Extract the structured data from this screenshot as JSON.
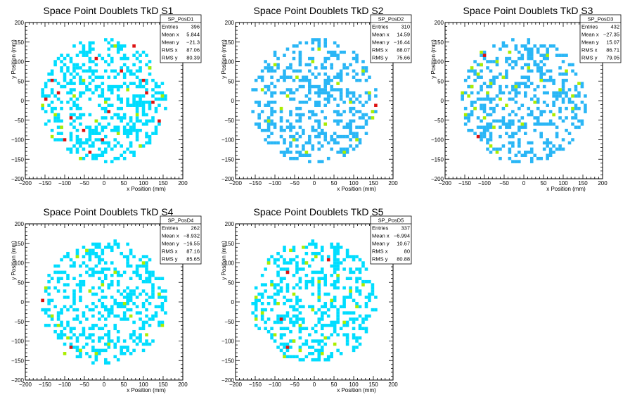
{
  "chart_data": [
    {
      "type": "heatmap",
      "title": "Space Point Doublets TkD S1",
      "xlabel": "x Position (mm)",
      "ylabel": "y Position (mm)",
      "xlim": [
        -200,
        200
      ],
      "ylim": [
        -200,
        200
      ],
      "xticks": [
        -200,
        -150,
        -100,
        -50,
        0,
        50,
        100,
        150,
        200
      ],
      "yticks": [
        -200,
        -150,
        -100,
        -50,
        0,
        50,
        100,
        150,
        200
      ],
      "stats": {
        "name": "SP_PosD1",
        "rows": [
          [
            "Entries",
            "396"
          ],
          [
            "Mean x",
            "5.844"
          ],
          [
            "Mean y",
            "−21.3"
          ],
          [
            "RMS x",
            "87.06"
          ],
          [
            "RMS y",
            "80.39"
          ]
        ]
      },
      "distribution": {
        "radius": 160,
        "bin": 8
      },
      "cells": [
        [
          -136,
          48,
          4
        ],
        [
          -120,
          16,
          4
        ],
        [
          -88,
          -48,
          4
        ],
        [
          -56,
          -80,
          4
        ],
        [
          -40,
          -136,
          4
        ],
        [
          -8,
          -104,
          4
        ],
        [
          40,
          72,
          4
        ],
        [
          96,
          48,
          4
        ],
        [
          120,
          -8,
          4
        ],
        [
          136,
          -56,
          4
        ],
        [
          -152,
          0,
          4
        ],
        [
          -24,
          104,
          4
        ],
        [
          8,
          -32,
          4
        ],
        [
          72,
          136,
          4
        ],
        [
          -104,
          -104,
          4
        ],
        [
          104,
          16,
          4
        ],
        [
          -160,
          -16,
          3
        ],
        [
          -128,
          -40,
          3
        ],
        [
          -112,
          -72,
          3
        ],
        [
          -80,
          8,
          3
        ],
        [
          -56,
          48,
          3
        ],
        [
          -24,
          -56,
          3
        ],
        [
          0,
          -8,
          3
        ],
        [
          32,
          -88,
          3
        ],
        [
          56,
          24,
          3
        ],
        [
          80,
          -40,
          3
        ],
        [
          112,
          80,
          3
        ],
        [
          144,
          8,
          3
        ],
        [
          -64,
          -152,
          3
        ],
        [
          24,
          136,
          3
        ],
        [
          -136,
          -96,
          3
        ],
        [
          88,
          -120,
          3
        ]
      ]
    },
    {
      "type": "heatmap",
      "title": "Space Point Doublets TkD S2",
      "xlabel": "x Position (mm)",
      "ylabel": "y Position (mm)",
      "xlim": [
        -200,
        200
      ],
      "ylim": [
        -200,
        200
      ],
      "xticks": [
        -200,
        -150,
        -100,
        -50,
        0,
        50,
        100,
        150,
        200
      ],
      "yticks": [
        -200,
        -150,
        -100,
        -50,
        0,
        50,
        100,
        150,
        200
      ],
      "stats": {
        "name": "SP_PosD2",
        "rows": [
          [
            "Entries",
            "310"
          ],
          [
            "Mean x",
            "14.59"
          ],
          [
            "Mean y",
            "−16.44"
          ],
          [
            "RMS x",
            "88.07"
          ],
          [
            "RMS y",
            "75.66"
          ]
        ]
      },
      "distribution": {
        "radius": 160,
        "bin": 8
      },
      "cells": [
        [
          152,
          -16,
          4
        ],
        [
          -48,
          56,
          3
        ],
        [
          -120,
          -56,
          3
        ],
        [
          -88,
          -24,
          3
        ],
        [
          -56,
          -104,
          3
        ],
        [
          -8,
          96,
          3
        ],
        [
          24,
          -64,
          3
        ],
        [
          56,
          40,
          3
        ],
        [
          88,
          -8,
          3
        ],
        [
          120,
          72,
          3
        ],
        [
          144,
          -48,
          3
        ],
        [
          144,
          -32,
          3
        ],
        [
          -136,
          24,
          3
        ],
        [
          -24,
          -136,
          3
        ],
        [
          104,
          -104,
          3
        ],
        [
          -104,
          88,
          3
        ],
        [
          8,
          128,
          3
        ],
        [
          72,
          -136,
          3
        ],
        [
          136,
          16,
          3
        ],
        [
          -72,
          8,
          3
        ]
      ]
    },
    {
      "type": "heatmap",
      "title": "Space Point Doublets TkD S3",
      "xlabel": "x Position (mm)",
      "ylabel": "y Position (mm)",
      "xlim": [
        -200,
        200
      ],
      "ylim": [
        -200,
        200
      ],
      "xticks": [
        -200,
        -150,
        -100,
        -50,
        0,
        50,
        100,
        150,
        200
      ],
      "yticks": [
        -200,
        -150,
        -100,
        -50,
        0,
        50,
        100,
        150,
        200
      ],
      "stats": {
        "name": "SP_PosD3",
        "rows": [
          [
            "Entries",
            "432"
          ],
          [
            "Mean x",
            "−27.35"
          ],
          [
            "Mean y",
            "15.07"
          ],
          [
            "RMS x",
            "86.71"
          ],
          [
            "RMS y",
            "79.05"
          ]
        ]
      },
      "distribution": {
        "radius": 160,
        "bin": 8
      },
      "cells": [
        [
          -120,
          -96,
          4
        ],
        [
          -104,
          112,
          4
        ],
        [
          -144,
          8,
          3
        ],
        [
          -136,
          32,
          3
        ],
        [
          -128,
          -24,
          3
        ],
        [
          -120,
          64,
          3
        ],
        [
          -112,
          88,
          3
        ],
        [
          -104,
          -48,
          3
        ],
        [
          -96,
          16,
          3
        ],
        [
          -88,
          40,
          3
        ],
        [
          -80,
          -72,
          3
        ],
        [
          -72,
          96,
          3
        ],
        [
          -64,
          0,
          3
        ],
        [
          -56,
          56,
          3
        ],
        [
          -48,
          -16,
          3
        ],
        [
          -40,
          120,
          3
        ],
        [
          -24,
          32,
          3
        ],
        [
          -8,
          -64,
          3
        ],
        [
          8,
          80,
          3
        ],
        [
          24,
          -8,
          3
        ],
        [
          40,
          48,
          3
        ],
        [
          56,
          112,
          3
        ],
        [
          72,
          -40,
          3
        ],
        [
          88,
          24,
          3
        ],
        [
          104,
          72,
          3
        ],
        [
          120,
          -24,
          3
        ],
        [
          136,
          40,
          3
        ],
        [
          -152,
          -40,
          3
        ],
        [
          -88,
          -120,
          3
        ],
        [
          -72,
          -136,
          3
        ],
        [
          -136,
          80,
          3
        ],
        [
          120,
          8,
          3
        ],
        [
          -112,
          120,
          3
        ],
        [
          -160,
          16,
          3
        ]
      ]
    },
    {
      "type": "heatmap",
      "title": "Space Point Doublets TkD S4",
      "xlabel": "x Position (mm)",
      "ylabel": "y Position (mm)",
      "xlim": [
        -200,
        200
      ],
      "ylim": [
        -200,
        200
      ],
      "xticks": [
        -200,
        -150,
        -100,
        -50,
        0,
        50,
        100,
        150,
        200
      ],
      "yticks": [
        -200,
        -150,
        -100,
        -50,
        0,
        50,
        100,
        150,
        200
      ],
      "stats": {
        "name": "SP_PosD4",
        "rows": [
          [
            "Entries",
            "262"
          ],
          [
            "Mean x",
            "−8.932"
          ],
          [
            "Mean y",
            "−16.55"
          ],
          [
            "RMS x",
            "87.16"
          ],
          [
            "RMS y",
            "85.65"
          ]
        ]
      },
      "distribution": {
        "radius": 160,
        "bin": 8
      },
      "cells": [
        [
          -160,
          0,
          4
        ],
        [
          -88,
          -120,
          4
        ],
        [
          -120,
          -64,
          3
        ],
        [
          -96,
          -96,
          3
        ],
        [
          -64,
          -128,
          3
        ],
        [
          -24,
          -136,
          3
        ],
        [
          -40,
          24,
          3
        ],
        [
          24,
          72,
          3
        ],
        [
          64,
          -40,
          3
        ],
        [
          104,
          -88,
          3
        ],
        [
          136,
          16,
          3
        ],
        [
          -136,
          -40,
          3
        ],
        [
          -152,
          32,
          3
        ],
        [
          8,
          -112,
          3
        ],
        [
          96,
          96,
          3
        ],
        [
          -72,
          112,
          3
        ],
        [
          48,
          -8,
          3
        ],
        [
          144,
          -64,
          3
        ],
        [
          -104,
          -136,
          3
        ],
        [
          -8,
          40,
          3
        ],
        [
          -48,
          128,
          3
        ]
      ]
    },
    {
      "type": "heatmap",
      "title": "Space Point Doublets TkD S5",
      "xlabel": "x Position (mm)",
      "ylabel": "y Position (mm)",
      "xlim": [
        -200,
        200
      ],
      "ylim": [
        -200,
        200
      ],
      "xticks": [
        -200,
        -150,
        -100,
        -50,
        0,
        50,
        100,
        150,
        200
      ],
      "yticks": [
        -200,
        -150,
        -100,
        -50,
        0,
        50,
        100,
        150,
        200
      ],
      "stats": {
        "name": "SP_PosD5",
        "rows": [
          [
            "Entries",
            "337"
          ],
          [
            "Mean x",
            "−6.994"
          ],
          [
            "Mean y",
            "10.67"
          ],
          [
            "RMS x",
            "80"
          ],
          [
            "RMS y",
            "80.88"
          ]
        ]
      },
      "distribution": {
        "radius": 160,
        "bin": 8
      },
      "cells": [
        [
          -72,
          72,
          4
        ],
        [
          32,
          104,
          4
        ],
        [
          -88,
          -48,
          4
        ],
        [
          -72,
          -120,
          4
        ],
        [
          -112,
          40,
          3
        ],
        [
          -96,
          -8,
          3
        ],
        [
          -56,
          16,
          3
        ],
        [
          -40,
          -64,
          3
        ],
        [
          -24,
          96,
          3
        ],
        [
          -8,
          -24,
          3
        ],
        [
          8,
          48,
          3
        ],
        [
          24,
          -96,
          3
        ],
        [
          40,
          0,
          3
        ],
        [
          56,
          64,
          3
        ],
        [
          72,
          -56,
          3
        ],
        [
          88,
          24,
          3
        ],
        [
          104,
          -16,
          3
        ],
        [
          120,
          40,
          3
        ],
        [
          -136,
          -32,
          3
        ],
        [
          -152,
          8,
          3
        ],
        [
          -80,
          -144,
          3
        ],
        [
          -64,
          128,
          3
        ],
        [
          -40,
          -128,
          3
        ],
        [
          -32,
          136,
          3
        ],
        [
          0,
          112,
          3
        ],
        [
          16,
          -136,
          3
        ],
        [
          48,
          -112,
          3
        ],
        [
          -104,
          -88,
          3
        ],
        [
          -120,
          96,
          3
        ],
        [
          -152,
          -48,
          3
        ],
        [
          -56,
          -104,
          3
        ],
        [
          8,
          8,
          3
        ]
      ]
    }
  ],
  "palette": {
    "1": "#00ddff",
    "2": "#29b6f6",
    "3": "#aaee00",
    "4": "#dd1111",
    "frame": "#000000",
    "background": "#ffffff"
  }
}
